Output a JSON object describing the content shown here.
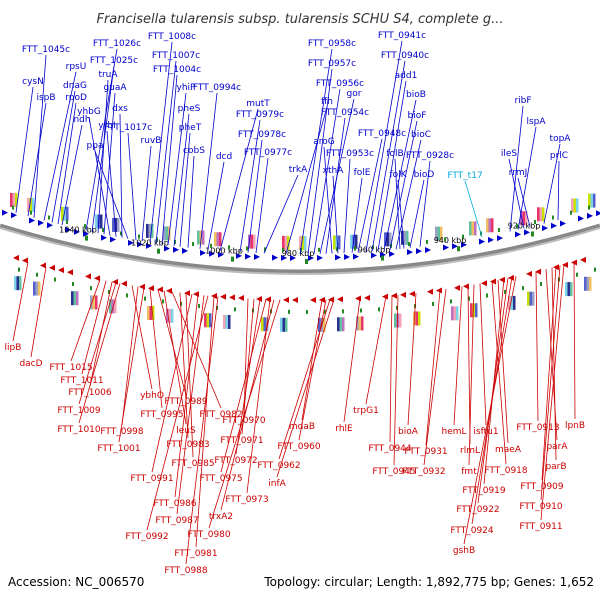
{
  "title": "Francisella tularensis subsp. tularensis SCHU S4, complete g...",
  "accession": "Accession: NC_006570",
  "topology": "Topology: circular; Length: 1,892,775 bp; Genes: 1,652",
  "colors": {
    "forward": "#0000cc",
    "reverse": "#cc0000",
    "trna": "#00aadd",
    "backbone": "#888888",
    "tick": "#228822"
  },
  "ticks": [
    "1040 kbp",
    "1020 kbp",
    "1000 kbp",
    "980 kbp",
    "960 kbp",
    "940 kbp",
    "920 kbp"
  ],
  "labels": {
    "forward": [
      "FTT_1045c",
      "cysN",
      "ispB",
      "rpsU",
      "dnaG",
      "rpoD",
      "ndh",
      "FTT_1026c",
      "FTT_1025c",
      "truA",
      "guaA",
      "yhbG",
      "yrbI",
      "dxs",
      "ppa",
      "FTT_1017c",
      "ruvB",
      "FTT_1008c",
      "FTT_1007c",
      "FTT_1004c",
      "yhiP",
      "pheS",
      "pheT",
      "cobS",
      "FTT_0994c",
      "dcd",
      "mutT",
      "FTT_0979c",
      "FTT_0978c",
      "FTT_0977c",
      "trkA",
      "ffh",
      "FTT_0958c",
      "FTT_0957c",
      "FTT_0956c",
      "gor",
      "FTT_0954c",
      "aroG",
      "xthA",
      "FTT_0953c",
      "folE",
      "FTT_0941c",
      "FTT_0940c",
      "add1",
      "bioB",
      "bioF",
      "bioC",
      "FTT_0948c",
      "folB",
      "folK",
      "bioD",
      "FTT_0928c",
      "ribF",
      "lspA",
      "ileS",
      "rrmJ",
      "topA",
      "prlC"
    ],
    "trna": [
      "FTT_t17"
    ],
    "reverse": [
      "lipB",
      "dacD",
      "FTT_1015",
      "FTT_1011",
      "FTT_1006",
      "FTT_1009",
      "FTT_1010",
      "ybhO",
      "FTT_0998",
      "FTT_1001",
      "FTT_0995",
      "FTT_0989",
      "leuS",
      "FTT_0982",
      "FTT_0983",
      "FTT_0985",
      "FTT_0991",
      "FTT_0986",
      "FTT_0987",
      "FTT_0992",
      "FTT_0981",
      "FTT_0988",
      "FTT_0970",
      "FTT_0971",
      "FTT_0972",
      "FTT_0975",
      "FTT_0973",
      "trxA2",
      "FTT_0980",
      "mdaB",
      "FTT_0960",
      "FTT_0962",
      "infA",
      "rhlE",
      "trpG1",
      "FTT_0944",
      "FTT_0945",
      "bioA",
      "FTT_0931",
      "FTT_0932",
      "hemL",
      "rlmL",
      "fmt",
      "isftu1",
      "FTT_0918",
      "maeA",
      "FTT_0919",
      "FTT_0922",
      "FTT_0924",
      "gshB",
      "FTT_0913",
      "lpnB",
      "parA",
      "parB",
      "FTT_0909",
      "FTT_0910",
      "FTT_0911"
    ]
  }
}
